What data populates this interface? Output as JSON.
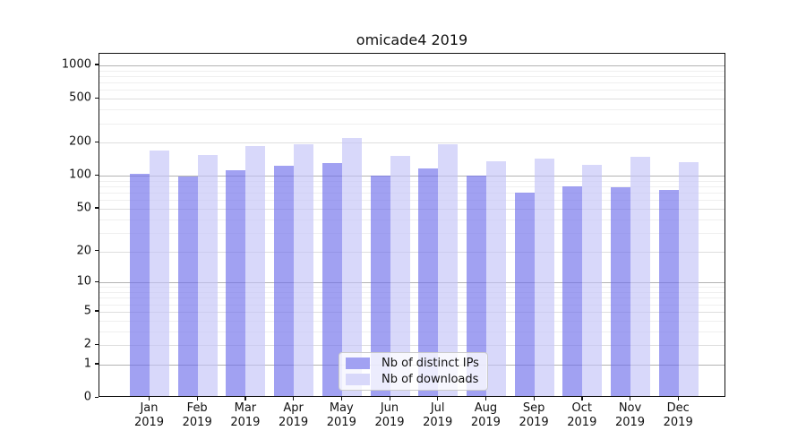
{
  "chart_data": {
    "type": "bar",
    "title": "omicade4 2019",
    "categories": [
      "Jan 2019",
      "Feb 2019",
      "Mar 2019",
      "Apr 2019",
      "May 2019",
      "Jun 2019",
      "Jul 2019",
      "Aug 2019",
      "Sep 2019",
      "Oct 2019",
      "Nov 2019",
      "Dec 2019"
    ],
    "series": [
      {
        "name": "Nb of distinct IPs",
        "color": "rgba(110,110,235,0.65)",
        "color_solid": "#a1a1f2",
        "values": [
          100,
          95,
          108,
          118,
          125,
          97,
          113,
          97,
          68,
          77,
          75,
          71
        ]
      },
      {
        "name": "Nb of downloads",
        "color": "rgba(195,195,247,0.65)",
        "color_solid": "#d8d8fa",
        "values": [
          162,
          150,
          180,
          186,
          212,
          145,
          185,
          130,
          139,
          120,
          144,
          127
        ]
      }
    ],
    "yscale": "log1p",
    "ylim": [
      0,
      1276
    ],
    "y_ticks": [
      1000,
      500,
      200,
      100,
      50,
      20,
      10,
      5,
      2,
      1,
      0
    ],
    "minor_grid_values": [
      3,
      4,
      6,
      7,
      8,
      9,
      30,
      40,
      60,
      70,
      80,
      90,
      300,
      400,
      600,
      700,
      800,
      900
    ],
    "grid": true,
    "legend_position": "lower center",
    "grid_colors": {
      "power10": "#b3b3b3",
      "labeled": "#dedede",
      "minor": "#efefef"
    }
  }
}
